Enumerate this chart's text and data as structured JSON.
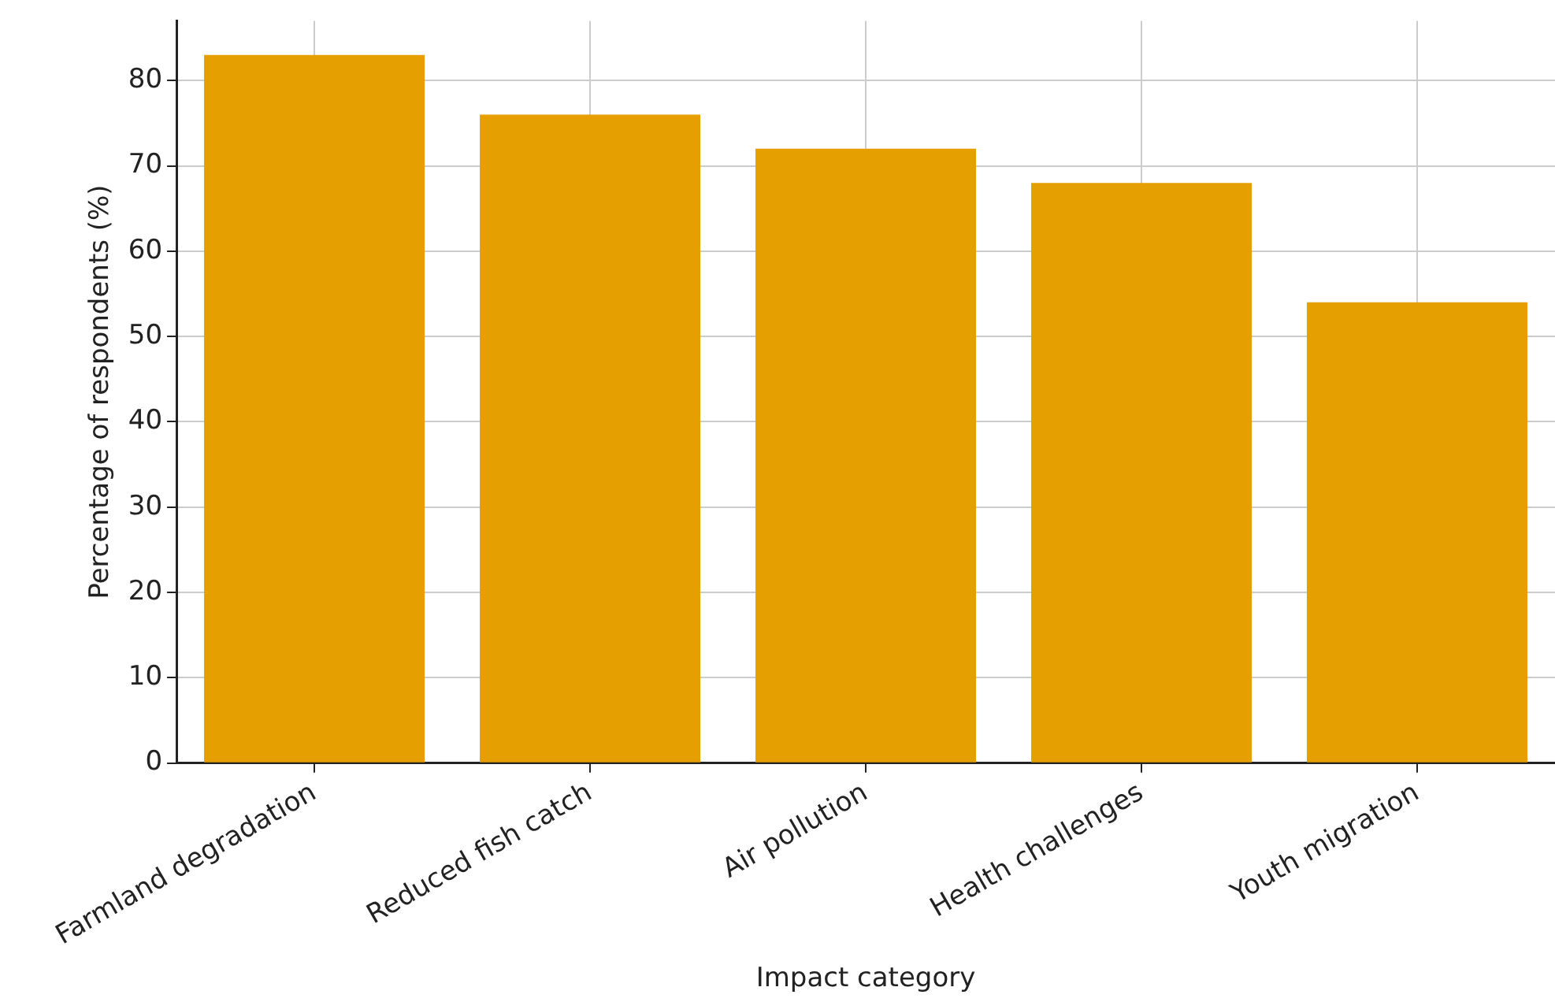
{
  "chart_data": {
    "type": "bar",
    "xlabel": "Impact category",
    "ylabel": "Percentage of respondents (%)",
    "categories": [
      "Farmland degradation",
      "Reduced fish catch",
      "Air pollution",
      "Health challenges",
      "Youth migration"
    ],
    "values": [
      83,
      76,
      72,
      68,
      54
    ],
    "color": "#e69f00",
    "ylim": [
      0,
      87
    ],
    "yticks": [
      0,
      10,
      20,
      30,
      40,
      50,
      60,
      70,
      80
    ],
    "grid": true
  }
}
